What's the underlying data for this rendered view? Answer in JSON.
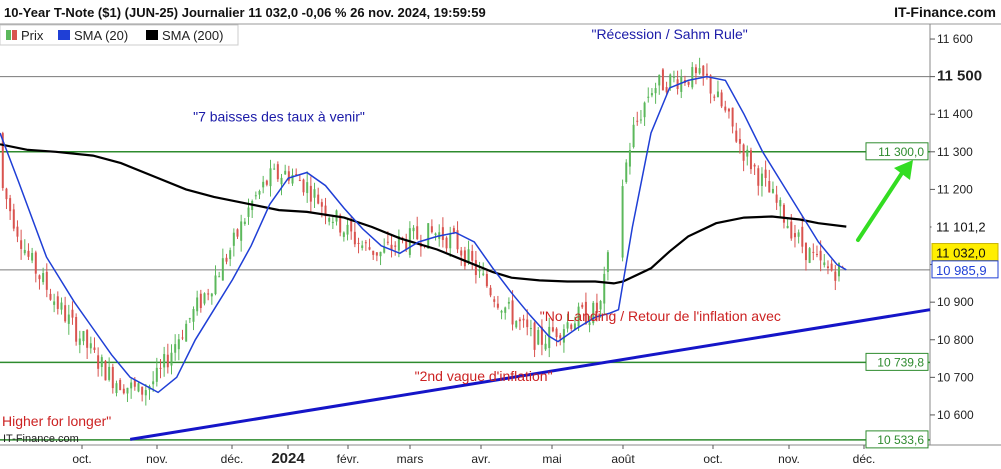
{
  "header": {
    "title": "10-Year T-Note ($1) (JUN-25) Journalier 11 032,0 -0,06 % 26 nov. 2024, 19:59:59",
    "brand": "IT-Finance.com"
  },
  "watermark": "IT-Finance.com",
  "colors": {
    "up": "#5cb85c",
    "down": "#d9534f",
    "sma20": "#1f3fd6",
    "sma200": "#000000",
    "trendline": "#1515c8",
    "hline_green": "#2e8b2e",
    "hline_gray": "#7a7a7a",
    "arrow": "#33dd22",
    "annotation_blue": "#1a1aa8",
    "annotation_red": "#cc2222"
  },
  "chart_data": {
    "type": "line",
    "title": "10-Year T-Note ($1) (JUN-25) Journalier 11 032,0 -0,06 % 26 nov. 2024, 19:59:59",
    "legend": {
      "placement": "top-left",
      "items": [
        {
          "name": "Prix",
          "color": "#5cb85c",
          "icon": "price-candle-icon"
        },
        {
          "name": "SMA (20)",
          "color": "#1f3fd6",
          "icon": "sma20-swatch-icon"
        },
        {
          "name": "SMA (200)",
          "color": "#000000",
          "icon": "sma200-swatch-icon"
        }
      ]
    },
    "x_labels": [
      "oct.",
      "nov.",
      "déc.",
      "2024",
      "févr.",
      "mars",
      "avr.",
      "mai",
      "août",
      "oct.",
      "nov.",
      "déc."
    ],
    "y_range": [
      10520,
      11640
    ],
    "y_ticks": [
      {
        "value": 10600,
        "label": "10 600",
        "bold": false
      },
      {
        "value": 10700,
        "label": "10 700",
        "bold": false
      },
      {
        "value": 10800,
        "label": "10 800",
        "bold": false
      },
      {
        "value": 10900,
        "label": "10 900",
        "bold": false
      },
      {
        "value": 11000,
        "label": "11 000",
        "bold": false
      },
      {
        "value": 11100,
        "label": "11 100",
        "bold": false
      },
      {
        "value": 11200,
        "label": "11 200",
        "bold": false
      },
      {
        "value": 11300,
        "label": "11 300",
        "bold": false
      },
      {
        "value": 11400,
        "label": "11 400",
        "bold": false
      },
      {
        "value": 11500,
        "label": "11 500",
        "bold": true
      },
      {
        "value": 11600,
        "label": "11 600",
        "bold": false
      }
    ],
    "levels": [
      {
        "value": 11500,
        "style": "gray",
        "label": ""
      },
      {
        "value": 11300,
        "style": "green",
        "label": "11 300,0"
      },
      {
        "value": 10985.9,
        "style": "gray",
        "label": ""
      },
      {
        "value": 10739.8,
        "style": "green",
        "label": "10 739,8"
      },
      {
        "value": 10533.6,
        "style": "green",
        "label": "10 533,6"
      }
    ],
    "value_tags": [
      {
        "value": 11101.2,
        "label": "11 101,2",
        "style": "black"
      },
      {
        "value": 11032.0,
        "label": "11 032,0",
        "style": "yellow"
      },
      {
        "value": 10985.9,
        "label": "10 985,9",
        "style": "blue"
      }
    ],
    "series": [
      {
        "name": "SMA (200)",
        "color": "#000000",
        "points": [
          [
            0,
            11320
          ],
          [
            0.03,
            11305
          ],
          [
            0.06,
            11300
          ],
          [
            0.1,
            11290
          ],
          [
            0.13,
            11270
          ],
          [
            0.17,
            11230
          ],
          [
            0.2,
            11200
          ],
          [
            0.23,
            11180
          ],
          [
            0.27,
            11160
          ],
          [
            0.3,
            11145
          ],
          [
            0.33,
            11140
          ],
          [
            0.37,
            11125
          ],
          [
            0.4,
            11100
          ],
          [
            0.43,
            11070
          ],
          [
            0.47,
            11040
          ],
          [
            0.5,
            11010
          ],
          [
            0.53,
            10980
          ],
          [
            0.55,
            10965
          ],
          [
            0.58,
            10958
          ],
          [
            0.61,
            10955
          ],
          [
            0.64,
            10955
          ],
          [
            0.66,
            10950
          ],
          [
            0.67,
            10955
          ],
          [
            0.7,
            10990
          ],
          [
            0.72,
            11035
          ],
          [
            0.74,
            11075
          ],
          [
            0.77,
            11110
          ],
          [
            0.8,
            11125
          ],
          [
            0.83,
            11128
          ],
          [
            0.86,
            11120
          ],
          [
            0.88,
            11110
          ],
          [
            0.91,
            11101
          ]
        ]
      },
      {
        "name": "SMA (20)",
        "color": "#1f3fd6",
        "points": [
          [
            0,
            11350
          ],
          [
            0.02,
            11220
          ],
          [
            0.05,
            11020
          ],
          [
            0.08,
            10900
          ],
          [
            0.1,
            10830
          ],
          [
            0.12,
            10760
          ],
          [
            0.14,
            10700
          ],
          [
            0.17,
            10660
          ],
          [
            0.19,
            10700
          ],
          [
            0.21,
            10800
          ],
          [
            0.23,
            10880
          ],
          [
            0.25,
            10960
          ],
          [
            0.27,
            11050
          ],
          [
            0.29,
            11160
          ],
          [
            0.31,
            11230
          ],
          [
            0.33,
            11245
          ],
          [
            0.35,
            11210
          ],
          [
            0.37,
            11150
          ],
          [
            0.39,
            11095
          ],
          [
            0.41,
            11050
          ],
          [
            0.43,
            11030
          ],
          [
            0.45,
            11060
          ],
          [
            0.47,
            11075
          ],
          [
            0.49,
            11085
          ],
          [
            0.51,
            11060
          ],
          [
            0.53,
            10990
          ],
          [
            0.55,
            10925
          ],
          [
            0.57,
            10865
          ],
          [
            0.59,
            10810
          ],
          [
            0.6,
            10795
          ],
          [
            0.62,
            10830
          ],
          [
            0.64,
            10860
          ],
          [
            0.655,
            10870
          ],
          [
            0.665,
            10880
          ],
          [
            0.68,
            11100
          ],
          [
            0.7,
            11350
          ],
          [
            0.72,
            11470
          ],
          [
            0.74,
            11490
          ],
          [
            0.76,
            11500
          ],
          [
            0.78,
            11490
          ],
          [
            0.8,
            11400
          ],
          [
            0.82,
            11300
          ],
          [
            0.84,
            11220
          ],
          [
            0.86,
            11140
          ],
          [
            0.88,
            11060
          ],
          [
            0.9,
            11000
          ],
          [
            0.91,
            10986
          ]
        ]
      },
      {
        "name": "trendline",
        "color": "#1515c8",
        "points": [
          [
            0.14,
            10535
          ],
          [
            1,
            10880
          ]
        ]
      }
    ],
    "annotations": [
      {
        "text": "\"7 baisses des taux à venir\"",
        "color": "blue",
        "x": 0.3,
        "value": 11380
      },
      {
        "text": "\"Récession / Sahm Rule\"",
        "color": "blue",
        "x": 0.72,
        "value": 11600
      },
      {
        "text": "\"No Landing / Retour de l'inflation avec",
        "color": "red",
        "x": 0.71,
        "value": 10850
      },
      {
        "text": "\"2nd vague d'inflation\"",
        "color": "red",
        "x": 0.52,
        "value": 10690
      },
      {
        "text": "Higher for longer\"",
        "color": "red",
        "x": 0.0,
        "value": 10570
      }
    ]
  }
}
